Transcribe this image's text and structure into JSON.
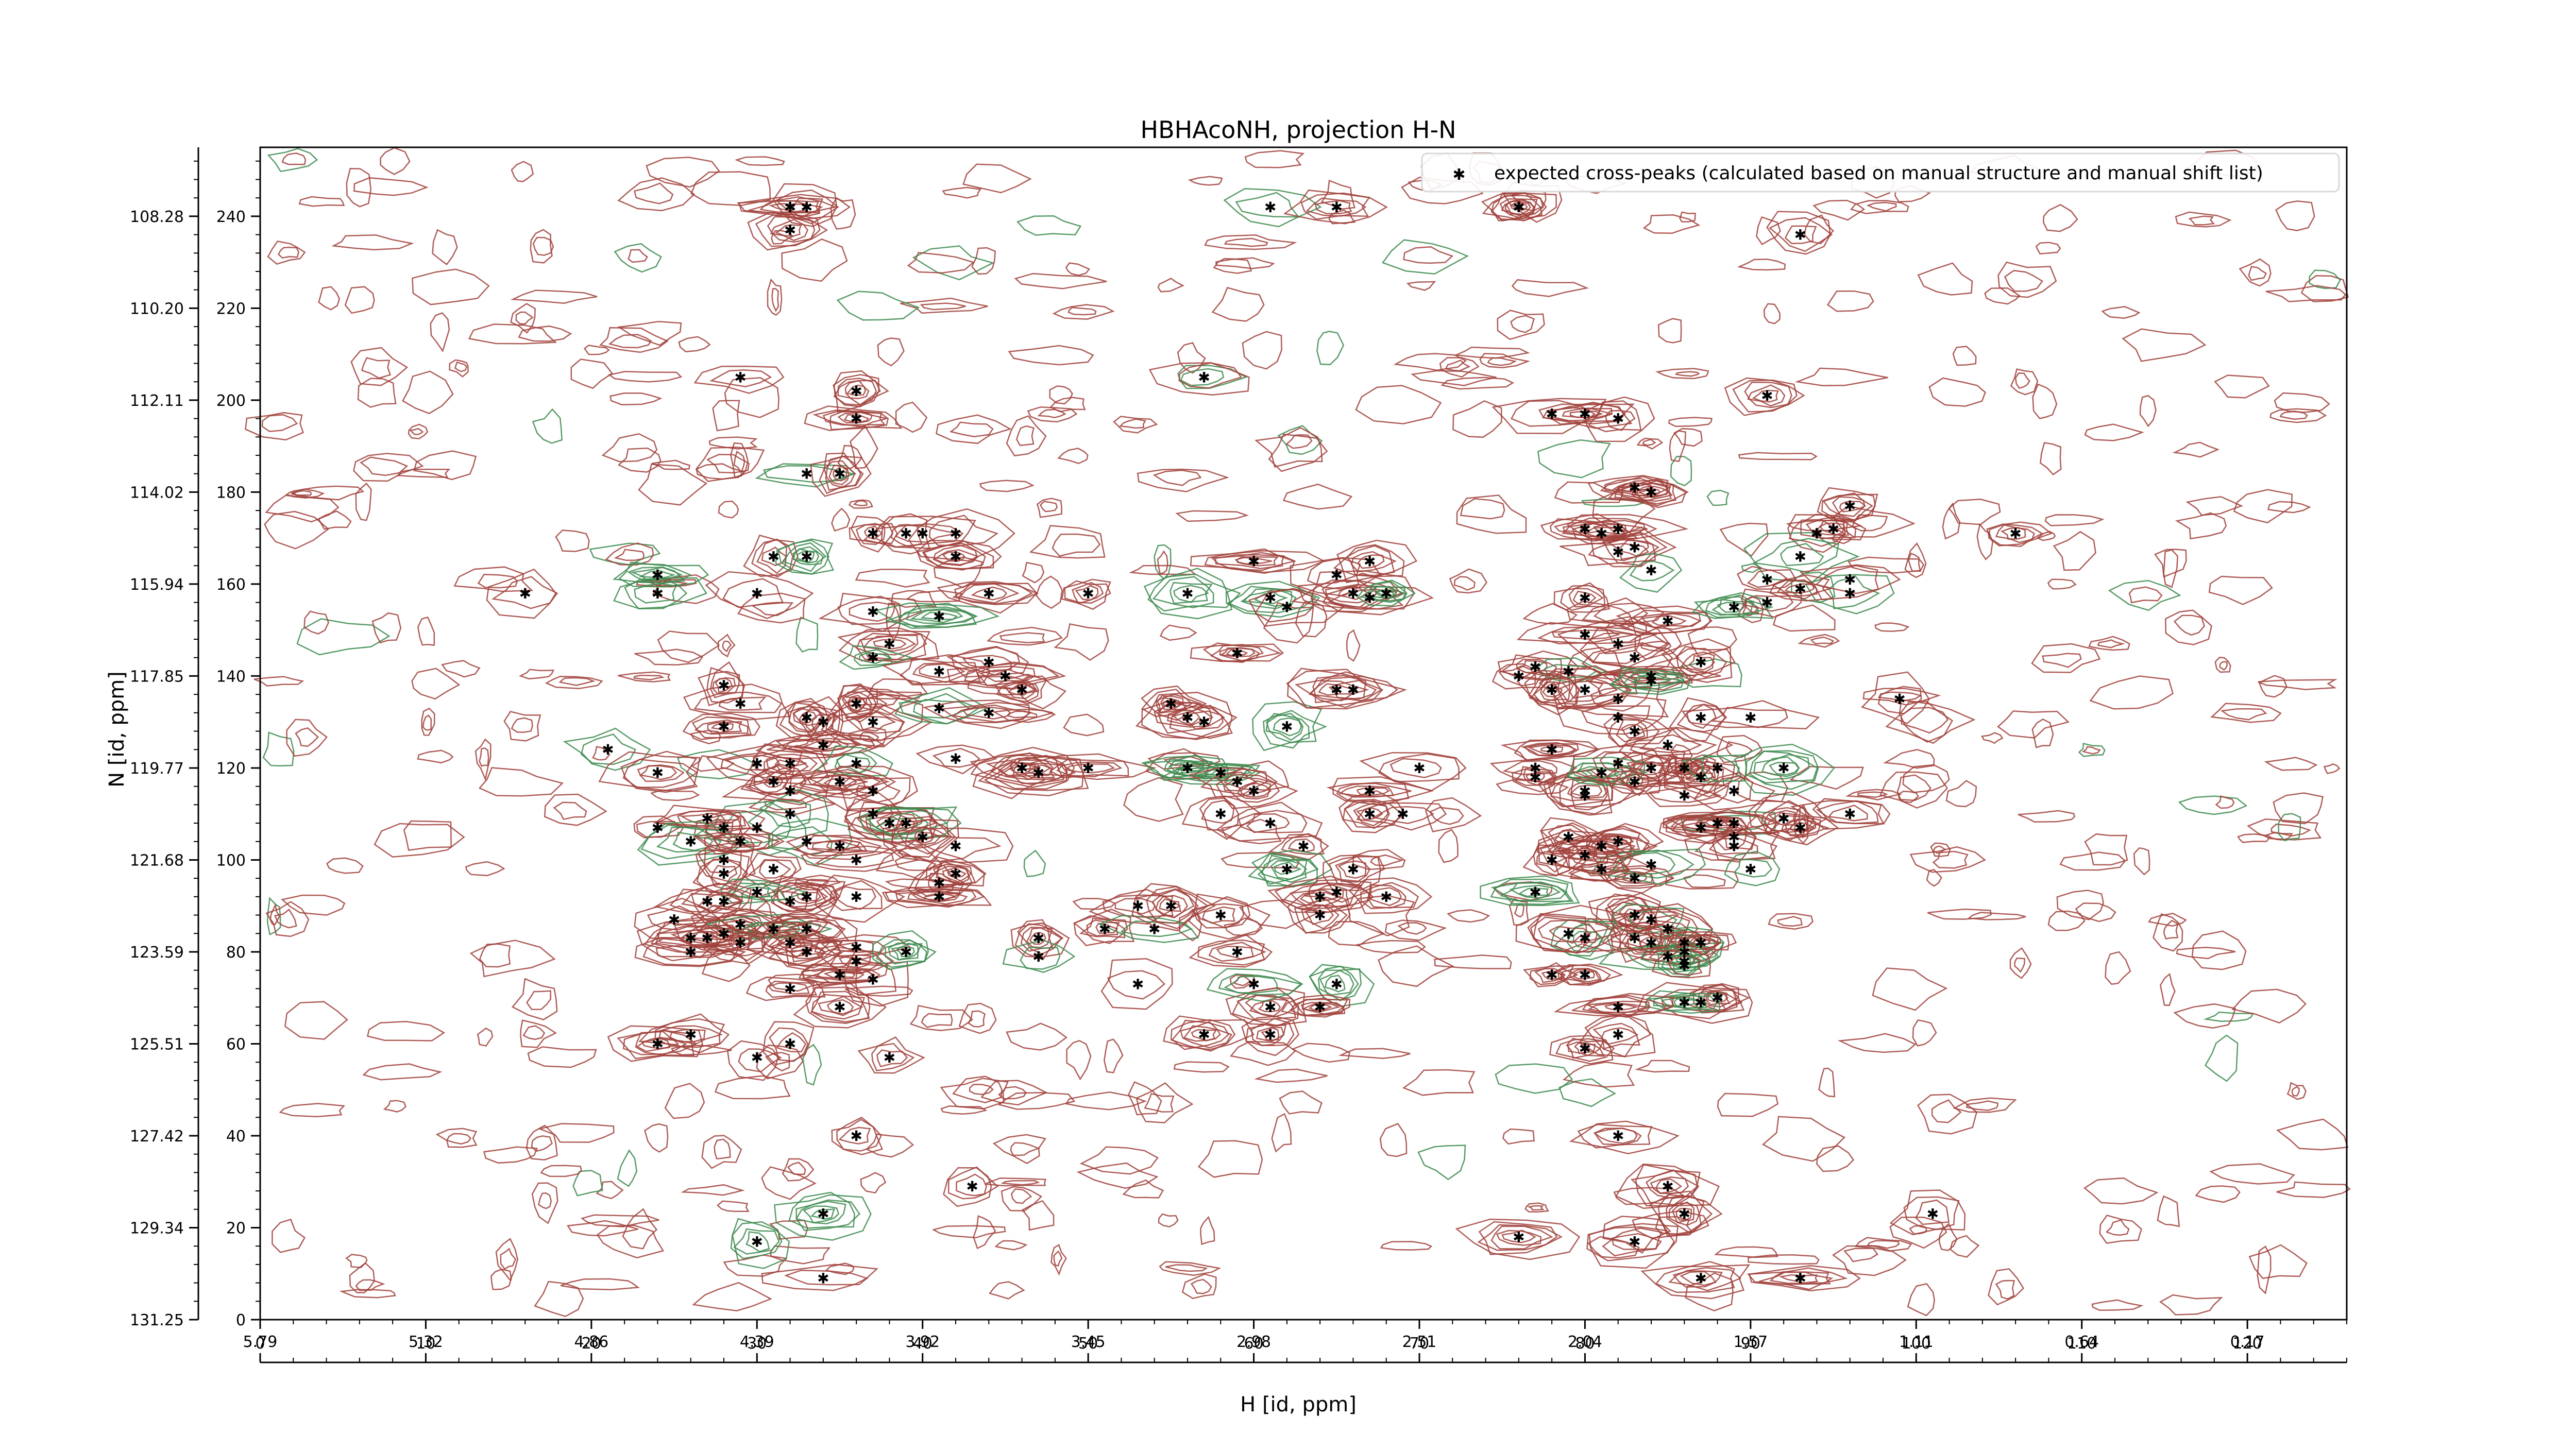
{
  "chart_data": {
    "type": "scatter",
    "title": "HBHAcoNH, projection H-N",
    "xlabel": "H [id, ppm]",
    "ylabel": "N [id, ppm]",
    "xlim": [
      0,
      126
    ],
    "ylim": [
      0,
      255
    ],
    "x_ticks_index": [
      "0",
      "10",
      "20",
      "30",
      "40",
      "50",
      "60",
      "70",
      "80",
      "90",
      "100",
      "110",
      "120"
    ],
    "x_ticks_ppm": [
      "5.79",
      "5.32",
      "4.86",
      "4.39",
      "3.92",
      "3.45",
      "2.98",
      "2.51",
      "2.04",
      "1.57",
      "1.11",
      "0.64",
      "0.17"
    ],
    "y_ticks_index": [
      "0",
      "20",
      "40",
      "60",
      "80",
      "100",
      "120",
      "140",
      "160",
      "180",
      "200",
      "220",
      "240"
    ],
    "y_ticks_ppm": [
      "131.25",
      "129.34",
      "127.42",
      "125.51",
      "123.59",
      "121.68",
      "119.77",
      "117.85",
      "115.94",
      "114.02",
      "112.11",
      "110.20",
      "108.28"
    ],
    "legend": {
      "placement": "top-right",
      "label": "expected cross-peaks (calculated based on manual structure and manual shift list)"
    },
    "colors": {
      "positive_contours": "#a0403a",
      "negative_contours": "#3c8a4e",
      "markers": "#0000ee"
    },
    "series": [
      {
        "name": "expected cross-peaks (calculated based on manual structure and manual shift list)",
        "points": [
          [
            32,
            242
          ],
          [
            33,
            242
          ],
          [
            32,
            237
          ],
          [
            29,
            205
          ],
          [
            36,
            202
          ],
          [
            36,
            196
          ],
          [
            33,
            184
          ],
          [
            35,
            184
          ],
          [
            31,
            166
          ],
          [
            33,
            166
          ],
          [
            37,
            171
          ],
          [
            39,
            171
          ],
          [
            42,
            171
          ],
          [
            42,
            166
          ],
          [
            40,
            171
          ],
          [
            24,
            162
          ],
          [
            16,
            158
          ],
          [
            24,
            158
          ],
          [
            30,
            158
          ],
          [
            37,
            154
          ],
          [
            44,
            158
          ],
          [
            41,
            153
          ],
          [
            38,
            147
          ],
          [
            37,
            144
          ],
          [
            41,
            141
          ],
          [
            44,
            143
          ],
          [
            45,
            140
          ],
          [
            46,
            137
          ],
          [
            28,
            138
          ],
          [
            29,
            134
          ],
          [
            28,
            129
          ],
          [
            36,
            134
          ],
          [
            33,
            131
          ],
          [
            34,
            125
          ],
          [
            37,
            130
          ],
          [
            34,
            130
          ],
          [
            41,
            133
          ],
          [
            44,
            132
          ],
          [
            21,
            124
          ],
          [
            24,
            119
          ],
          [
            30,
            121
          ],
          [
            32,
            121
          ],
          [
            36,
            121
          ],
          [
            42,
            122
          ],
          [
            46,
            120
          ],
          [
            47,
            119
          ],
          [
            31,
            117
          ],
          [
            32,
            115
          ],
          [
            35,
            117
          ],
          [
            37,
            115
          ],
          [
            37,
            110
          ],
          [
            32,
            110
          ],
          [
            30,
            107
          ],
          [
            27,
            109
          ],
          [
            28,
            107
          ],
          [
            24,
            107
          ],
          [
            26,
            104
          ],
          [
            29,
            104
          ],
          [
            33,
            104
          ],
          [
            35,
            103
          ],
          [
            38,
            108
          ],
          [
            39,
            108
          ],
          [
            40,
            105
          ],
          [
            42,
            103
          ],
          [
            36,
            100
          ],
          [
            28,
            100
          ],
          [
            28,
            97
          ],
          [
            31,
            98
          ],
          [
            42,
            97
          ],
          [
            41,
            95
          ],
          [
            41,
            92
          ],
          [
            36,
            92
          ],
          [
            33,
            92
          ],
          [
            32,
            91
          ],
          [
            30,
            93
          ],
          [
            28,
            91
          ],
          [
            27,
            91
          ],
          [
            25,
            87
          ],
          [
            29,
            86
          ],
          [
            28,
            84
          ],
          [
            31,
            85
          ],
          [
            33,
            85
          ],
          [
            26,
            83
          ],
          [
            26,
            80
          ],
          [
            27,
            83
          ],
          [
            29,
            82
          ],
          [
            32,
            82
          ],
          [
            33,
            80
          ],
          [
            36,
            81
          ],
          [
            36,
            78
          ],
          [
            37,
            74
          ],
          [
            35,
            75
          ],
          [
            39,
            80
          ],
          [
            47,
            83
          ],
          [
            32,
            72
          ],
          [
            35,
            68
          ],
          [
            26,
            62
          ],
          [
            30,
            57
          ],
          [
            32,
            60
          ],
          [
            38,
            57
          ],
          [
            24,
            60
          ],
          [
            36,
            40
          ],
          [
            34,
            23
          ],
          [
            30,
            17
          ],
          [
            34,
            9
          ],
          [
            43,
            29
          ],
          [
            47,
            79
          ],
          [
            61,
            242
          ],
          [
            65,
            242
          ],
          [
            76,
            242
          ],
          [
            57,
            205
          ],
          [
            60,
            165
          ],
          [
            61,
            157
          ],
          [
            62,
            155
          ],
          [
            65,
            162
          ],
          [
            67,
            165
          ],
          [
            66,
            158
          ],
          [
            67,
            157
          ],
          [
            68,
            158
          ],
          [
            56,
            158
          ],
          [
            50,
            158
          ],
          [
            59,
            145
          ],
          [
            55,
            134
          ],
          [
            56,
            131
          ],
          [
            57,
            130
          ],
          [
            62,
            129
          ],
          [
            65,
            137
          ],
          [
            66,
            137
          ],
          [
            50,
            120
          ],
          [
            56,
            120
          ],
          [
            58,
            119
          ],
          [
            59,
            117
          ],
          [
            60,
            115
          ],
          [
            58,
            110
          ],
          [
            61,
            108
          ],
          [
            63,
            103
          ],
          [
            62,
            98
          ],
          [
            66,
            98
          ],
          [
            67,
            110
          ],
          [
            67,
            115
          ],
          [
            70,
            120
          ],
          [
            65,
            93
          ],
          [
            64,
            92
          ],
          [
            64,
            88
          ],
          [
            68,
            92
          ],
          [
            58,
            88
          ],
          [
            59,
            80
          ],
          [
            51,
            85
          ],
          [
            53,
            90
          ],
          [
            54,
            85
          ],
          [
            55,
            90
          ],
          [
            53,
            73
          ],
          [
            57,
            62
          ],
          [
            61,
            62
          ],
          [
            61,
            68
          ],
          [
            60,
            73
          ],
          [
            65,
            73
          ],
          [
            64,
            68
          ],
          [
            76,
            18
          ],
          [
            76,
            242
          ],
          [
            57,
            205
          ],
          [
            78,
            197
          ],
          [
            80,
            197
          ],
          [
            82,
            196
          ],
          [
            83,
            181
          ],
          [
            84,
            180
          ],
          [
            80,
            172
          ],
          [
            81,
            171
          ],
          [
            82,
            172
          ],
          [
            83,
            168
          ],
          [
            84,
            163
          ],
          [
            85,
            152
          ],
          [
            94,
            171
          ],
          [
            93,
            166
          ],
          [
            95,
            172
          ],
          [
            89,
            155
          ],
          [
            91,
            156
          ],
          [
            91,
            161
          ],
          [
            96,
            158
          ],
          [
            96,
            177
          ],
          [
            82,
            167
          ],
          [
            80,
            149
          ],
          [
            82,
            147
          ],
          [
            80,
            157
          ],
          [
            77,
            142
          ],
          [
            76,
            140
          ],
          [
            79,
            141
          ],
          [
            78,
            137
          ],
          [
            80,
            137
          ],
          [
            82,
            135
          ],
          [
            82,
            131
          ],
          [
            83,
            144
          ],
          [
            84,
            140
          ],
          [
            84,
            139
          ],
          [
            87,
            143
          ],
          [
            83,
            128
          ],
          [
            85,
            125
          ],
          [
            87,
            131
          ],
          [
            86,
            120
          ],
          [
            87,
            118
          ],
          [
            92,
            120
          ],
          [
            84,
            120
          ],
          [
            78,
            124
          ],
          [
            77,
            120
          ],
          [
            77,
            118
          ],
          [
            80,
            115
          ],
          [
            80,
            114
          ],
          [
            81,
            119
          ],
          [
            82,
            121
          ],
          [
            83,
            117
          ],
          [
            86,
            114
          ],
          [
            88,
            120
          ],
          [
            89,
            115
          ],
          [
            89,
            108
          ],
          [
            87,
            107
          ],
          [
            88,
            108
          ],
          [
            89,
            105
          ],
          [
            92,
            109
          ],
          [
            93,
            107
          ],
          [
            96,
            110
          ],
          [
            89,
            103
          ],
          [
            90,
            98
          ],
          [
            79,
            105
          ],
          [
            81,
            103
          ],
          [
            82,
            104
          ],
          [
            83,
            96
          ],
          [
            84,
            99
          ],
          [
            80,
            101
          ],
          [
            81,
            98
          ],
          [
            78,
            100
          ],
          [
            77,
            93
          ],
          [
            83,
            88
          ],
          [
            84,
            87
          ],
          [
            85,
            85
          ],
          [
            86,
            82
          ],
          [
            86,
            80
          ],
          [
            85,
            79
          ],
          [
            87,
            82
          ],
          [
            86,
            78
          ],
          [
            86,
            77
          ],
          [
            87,
            69
          ],
          [
            88,
            70
          ],
          [
            86,
            69
          ],
          [
            83,
            83
          ],
          [
            84,
            82
          ],
          [
            80,
            83
          ],
          [
            79,
            84
          ],
          [
            78,
            75
          ],
          [
            80,
            75
          ],
          [
            82,
            68
          ],
          [
            82,
            62
          ],
          [
            80,
            59
          ],
          [
            82,
            40
          ],
          [
            83,
            17
          ],
          [
            85,
            29
          ],
          [
            86,
            23
          ],
          [
            87,
            9
          ],
          [
            90,
            131
          ],
          [
            93,
            159
          ],
          [
            96,
            161
          ],
          [
            99,
            135
          ],
          [
            106,
            171
          ],
          [
            101,
            23
          ],
          [
            93,
            9
          ],
          [
            93,
            236
          ],
          [
            91,
            201
          ],
          [
            69,
            110
          ]
        ]
      }
    ]
  }
}
